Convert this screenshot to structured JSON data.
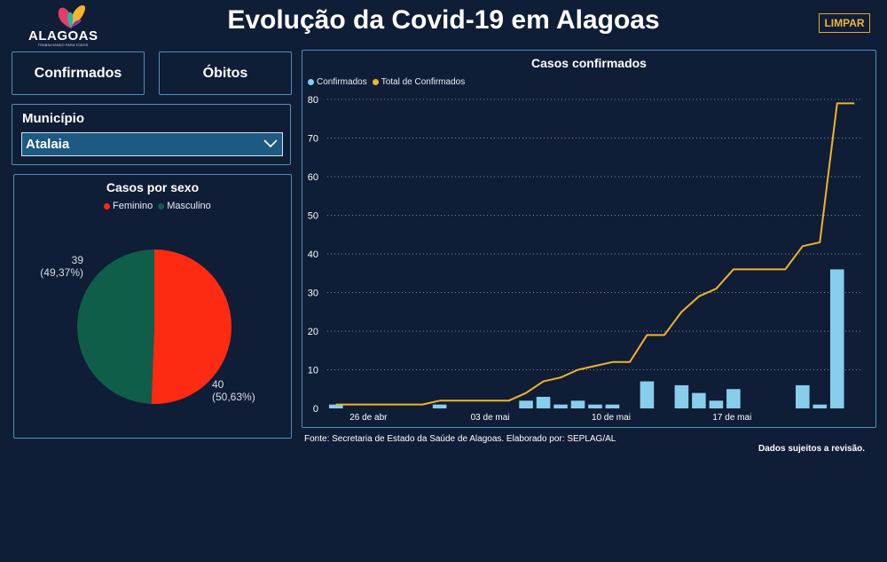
{
  "header": {
    "title": "Evolução da Covid-19 em Alagoas",
    "clear_label": "LIMPAR",
    "logo_text": "ALAGOAS",
    "logo_subtext": "TRABALHANDO PARA TODOS"
  },
  "metrics": {
    "confirmados_label": "Confirmados",
    "obitos_label": "Óbitos"
  },
  "slicer": {
    "label": "Município",
    "value": "Atalaia"
  },
  "sex_chart": {
    "title": "Casos por sexo",
    "legend": [
      {
        "name": "Feminino",
        "color": "#ff2a12"
      },
      {
        "name": "Masculino",
        "color": "#0f5e4a"
      }
    ],
    "labels": [
      {
        "value": "40",
        "percent": "(50,63%)"
      },
      {
        "value": "39",
        "percent": "(49,37%)"
      }
    ]
  },
  "cases_chart": {
    "title": "Casos confirmados",
    "legend": [
      {
        "name": "Confirmados",
        "color": "#87ceeb"
      },
      {
        "name": "Total de Confirmados",
        "color": "#f0b429"
      }
    ]
  },
  "colors": {
    "background": "#0f1d37",
    "panel_border": "#4f8fb8",
    "bar": "#87ceeb",
    "line": "#f0b429",
    "feminino": "#ff2a12",
    "masculino": "#0f5e4a"
  },
  "chart_data": [
    {
      "type": "pie",
      "title": "Casos por sexo",
      "categories": [
        "Feminino",
        "Masculino"
      ],
      "values": [
        40,
        39
      ],
      "percent_labels": [
        "(50,63%)",
        "(49,37%)"
      ],
      "legend_position": "top"
    },
    {
      "type": "bar+line",
      "title": "Casos confirmados",
      "x": [
        "2020-04-25",
        "2020-04-26",
        "2020-04-27",
        "2020-04-28",
        "2020-04-29",
        "2020-04-30",
        "2020-05-01",
        "2020-05-02",
        "2020-05-03",
        "2020-05-04",
        "2020-05-05",
        "2020-05-06",
        "2020-05-07",
        "2020-05-08",
        "2020-05-09",
        "2020-05-10",
        "2020-05-11",
        "2020-05-12",
        "2020-05-13",
        "2020-05-14",
        "2020-05-15",
        "2020-05-16",
        "2020-05-17",
        "2020-05-18",
        "2020-05-19",
        "2020-05-20",
        "2020-05-21",
        "2020-05-22",
        "2020-05-23",
        "2020-05-24",
        "2020-05-25"
      ],
      "x_tick_labels": [
        "26 de abr",
        "03 de mai",
        "10 de mai",
        "17 de mai"
      ],
      "x_tick_dates": [
        "2020-04-26",
        "2020-05-03",
        "2020-05-10",
        "2020-05-17"
      ],
      "series": [
        {
          "name": "Confirmados",
          "type": "bar",
          "values": [
            1,
            0,
            0,
            0,
            0,
            0,
            1,
            0,
            0,
            0,
            0,
            2,
            3,
            1,
            2,
            1,
            1,
            0,
            7,
            0,
            6,
            4,
            2,
            5,
            0,
            0,
            0,
            6,
            1,
            36,
            0
          ]
        },
        {
          "name": "Total de Confirmados",
          "type": "line",
          "values": [
            1,
            1,
            1,
            1,
            1,
            1,
            2,
            2,
            2,
            2,
            2,
            4,
            7,
            8,
            10,
            11,
            12,
            12,
            19,
            19,
            25,
            29,
            31,
            36,
            36,
            36,
            36,
            42,
            43,
            79,
            79
          ]
        }
      ],
      "ylim": [
        0,
        80
      ],
      "y_ticks": [
        0,
        10,
        20,
        30,
        40,
        50,
        60,
        70,
        80
      ],
      "grid": "horizontal dotted",
      "legend_position": "top-left"
    }
  ],
  "footer": {
    "source": "Fonte: Secretaria de Estado da Saúde de Alagoas. Elaborado por: SEPLAG/AL",
    "revision": "Dados sujeitos a revisão."
  }
}
